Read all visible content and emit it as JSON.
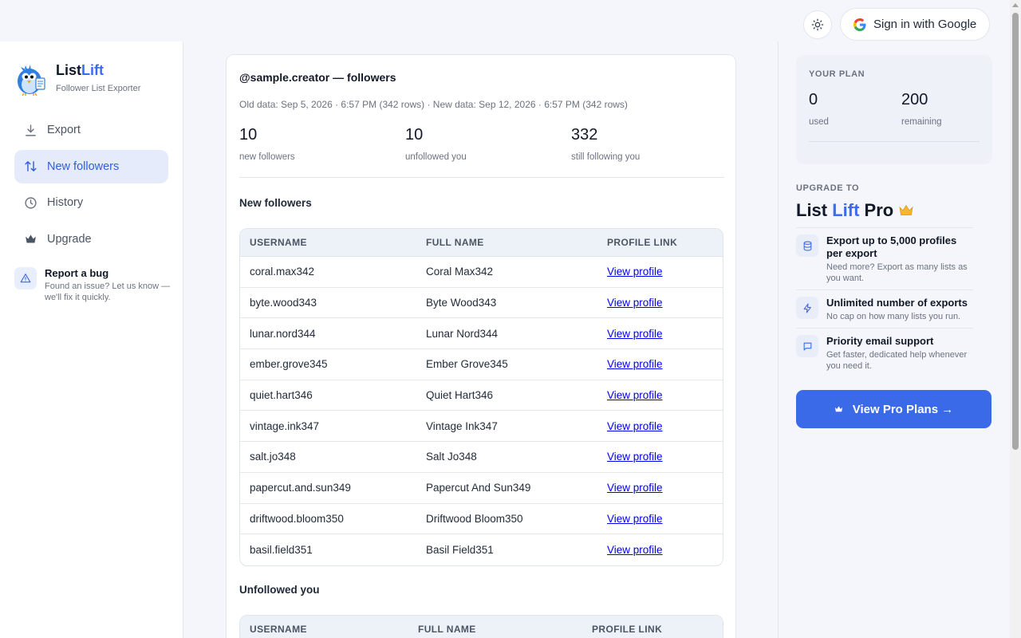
{
  "header": {
    "sign_in_label": "Sign in with Google"
  },
  "brand": {
    "name_part1": "List",
    "name_part2": "Lift",
    "subtitle": "Follower List Exporter"
  },
  "sidebar": {
    "items": [
      {
        "label": "Export",
        "icon": "download-icon",
        "active": false
      },
      {
        "label": "New followers",
        "icon": "swap-icon",
        "active": true
      },
      {
        "label": "History",
        "icon": "clock-icon",
        "active": false
      },
      {
        "label": "Upgrade",
        "icon": "crown-icon",
        "active": false
      }
    ],
    "bug": {
      "title": "Report a bug",
      "desc": "Found an issue? Let us know — we'll fix it quickly."
    }
  },
  "main": {
    "title": "@sample.creator — followers",
    "meta": "Old data: Sep 5, 2026 · 6:57 PM (342 rows) · New data: Sep 12, 2026 · 6:57 PM (342 rows)",
    "stats": [
      {
        "value": "10",
        "label": "new followers"
      },
      {
        "value": "10",
        "label": "unfollowed you"
      },
      {
        "value": "332",
        "label": "still following you"
      }
    ],
    "new_followers_title": "New followers",
    "columns": [
      "USERNAME",
      "FULL NAME",
      "PROFILE LINK"
    ],
    "rows": [
      {
        "username": "coral.max342",
        "full_name": "Coral Max342",
        "link": "View profile"
      },
      {
        "username": "byte.wood343",
        "full_name": "Byte Wood343",
        "link": "View profile"
      },
      {
        "username": "lunar.nord344",
        "full_name": "Lunar Nord344",
        "link": "View profile"
      },
      {
        "username": "ember.grove345",
        "full_name": "Ember Grove345",
        "link": "View profile"
      },
      {
        "username": "quiet.hart346",
        "full_name": "Quiet Hart346",
        "link": "View profile"
      },
      {
        "username": "vintage.ink347",
        "full_name": "Vintage Ink347",
        "link": "View profile"
      },
      {
        "username": "salt.jo348",
        "full_name": "Salt Jo348",
        "link": "View profile"
      },
      {
        "username": "papercut.and.sun349",
        "full_name": "Papercut And Sun349",
        "link": "View profile"
      },
      {
        "username": "driftwood.bloom350",
        "full_name": "Driftwood Bloom350",
        "link": "View profile"
      },
      {
        "username": "basil.field351",
        "full_name": "Basil Field351",
        "link": "View profile"
      }
    ],
    "unfollowed_title": "Unfollowed you",
    "unfollowed_columns": [
      "USERNAME",
      "FULL NAME",
      "PROFILE LINK"
    ]
  },
  "plan": {
    "label": "YOUR PLAN",
    "used": "0",
    "used_label": "used",
    "remaining": "200",
    "remaining_label": "remaining"
  },
  "upgrade": {
    "label": "UPGRADE TO",
    "title_part1": "List ",
    "title_part2": "Lift",
    "title_part3": " Pro",
    "features": [
      {
        "icon": "database-icon",
        "title": "Export up to 5,000 profiles per export",
        "desc": "Need more? Export as many lists as you want."
      },
      {
        "icon": "lightning-icon",
        "title": "Unlimited number of exports",
        "desc": "No cap on how many lists you run."
      },
      {
        "icon": "chat-icon",
        "title": "Priority email support",
        "desc": "Get faster, dedicated help whenever you need it."
      }
    ],
    "cta": "View Pro Plans →"
  },
  "colors": {
    "accent": "#3b6ae8",
    "active_nav_bg": "#e5ebfb",
    "link": "#0000ee"
  }
}
